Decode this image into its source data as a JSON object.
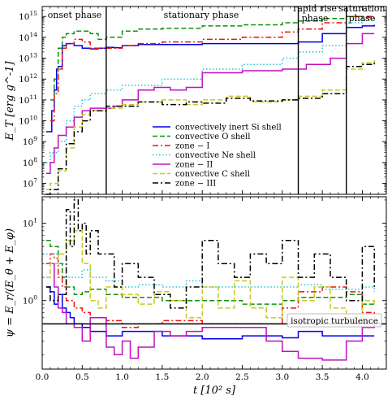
{
  "chart_data": [
    {
      "type": "line",
      "ylabel": "E_T [erg g^-1]",
      "yscale": "log",
      "ylim": [
        3000000,
        3000000000000000
      ],
      "xlim": [
        0,
        4.3
      ],
      "y_ticks": [
        {
          "value": 10000000,
          "mant": "10",
          "exp": "7"
        },
        {
          "value": 100000000,
          "mant": "10",
          "exp": "8"
        },
        {
          "value": 1000000000,
          "mant": "10",
          "exp": "9"
        },
        {
          "value": 10000000000,
          "mant": "10",
          "exp": "10"
        },
        {
          "value": 100000000000,
          "mant": "10",
          "exp": "11"
        },
        {
          "value": 1000000000000,
          "mant": "10",
          "exp": "12"
        },
        {
          "value": 10000000000000,
          "mant": "10",
          "exp": "13"
        },
        {
          "value": 100000000000000,
          "mant": "10",
          "exp": "14"
        },
        {
          "value": 1000000000000000,
          "mant": "10",
          "exp": "15"
        }
      ],
      "phase_lines": [
        0.8,
        3.2,
        3.8
      ],
      "phase_labels": [
        "onset phase",
        "stationary phase",
        "rapid rise",
        "phase",
        "saturation",
        "phase"
      ],
      "legend": {
        "position": "center-right",
        "entries": [
          {
            "label": "convectively inert Si shell",
            "color": "#0000ee",
            "dash": "solid"
          },
          {
            "label": "convective O shell",
            "color": "#109010",
            "dash": "dashed"
          },
          {
            "label": "zone − I",
            "color": "#ee1111",
            "dash": "dashdot"
          },
          {
            "label": "convective Ne shell",
            "color": "#22c4d4",
            "dash": "dotted"
          },
          {
            "label": "zone − II",
            "color": "#c010c0",
            "dash": "solid"
          },
          {
            "label": "convective C shell",
            "color": "#c8c820",
            "dash": "dashed"
          },
          {
            "label": "zone − III",
            "color": "#000000",
            "dash": "dashdot"
          }
        ]
      },
      "series": [
        {
          "name": "convectively inert Si shell",
          "x": [
            0.05,
            0.08,
            0.1,
            0.12,
            0.14,
            0.15,
            0.18,
            0.2,
            0.25,
            0.3,
            0.4,
            0.5,
            0.6,
            0.7,
            0.8,
            0.9,
            1.0,
            1.2,
            1.5,
            2.0,
            2.5,
            3.0,
            3.2,
            3.5,
            3.8,
            4.0,
            4.15
          ],
          "y": [
            3000000000.0,
            3000000000.0,
            3000000000.0,
            30000000000.0,
            30000000000.0,
            300000000000.0,
            3000000000000.0,
            4000000000000.0,
            40000000000000.0,
            50000000000000.0,
            40000000000000.0,
            30000000000000.0,
            28000000000000.0,
            30000000000000.0,
            33000000000000.0,
            32000000000000.0,
            40000000000000.0,
            45000000000000.0,
            45000000000000.0,
            50000000000000.0,
            50000000000000.0,
            50000000000000.0,
            60000000000000.0,
            150000000000000.0,
            300000000000000.0,
            350000000000000.0,
            400000000000000.0
          ]
        },
        {
          "name": "convective O shell",
          "x": [
            0.1,
            0.15,
            0.2,
            0.25,
            0.3,
            0.4,
            0.5,
            0.6,
            0.7,
            0.8,
            1.0,
            1.2,
            1.5,
            2.0,
            2.5,
            3.0,
            3.2,
            3.5,
            3.8,
            4.0,
            4.15
          ],
          "y": [
            100000000000.0,
            1000000000000.0,
            30000000000000.0,
            100000000000000.0,
            150000000000000.0,
            200000000000000.0,
            200000000000000.0,
            150000000000000.0,
            80000000000000.0,
            100000000000000.0,
            200000000000000.0,
            250000000000000.0,
            270000000000000.0,
            350000000000000.0,
            400000000000000.0,
            500000000000000.0,
            600000000000000.0,
            800000000000000.0,
            1000000000000000.0,
            900000000000000.0,
            900000000000000.0
          ]
        },
        {
          "name": "zone − I",
          "x": [
            0.1,
            0.15,
            0.2,
            0.25,
            0.3,
            0.4,
            0.5,
            0.6,
            0.8,
            1.0,
            1.2,
            1.5,
            2.0,
            2.5,
            3.0,
            3.2,
            3.5,
            3.8,
            4.0,
            4.15
          ],
          "y": [
            10000000000.0,
            200000000000.0,
            3000000000000.0,
            30000000000000.0,
            50000000000000.0,
            80000000000000.0,
            60000000000000.0,
            30000000000000.0,
            30000000000000.0,
            40000000000000.0,
            50000000000000.0,
            60000000000000.0,
            80000000000000.0,
            100000000000000.0,
            180000000000000.0,
            250000000000000.0,
            500000000000000.0,
            1000000000000000.0,
            1000000000000000.0,
            1000000000000000.0
          ]
        },
        {
          "name": "convective Ne shell",
          "x": [
            0.05,
            0.1,
            0.2,
            0.3,
            0.4,
            0.5,
            0.6,
            0.8,
            1.0,
            1.5,
            2.0,
            2.5,
            3.0,
            3.2,
            3.5,
            3.8,
            4.0,
            4.15
          ],
          "y": [
            100000000.0,
            300000000.0,
            1000000000.0,
            10000000000.0,
            50000000000.0,
            100000000000.0,
            200000000000.0,
            300000000000.0,
            500000000000.0,
            1000000000000.0,
            3000000000000.0,
            5000000000000.0,
            10000000000000.0,
            20000000000000.0,
            40000000000000.0,
            500000000000000.0,
            700000000000000.0,
            800000000000000.0
          ]
        },
        {
          "name": "zone − II",
          "x": [
            0.05,
            0.1,
            0.15,
            0.2,
            0.3,
            0.4,
            0.5,
            0.6,
            0.7,
            0.8,
            0.9,
            1.0,
            1.2,
            1.4,
            1.6,
            1.8,
            2.0,
            2.5,
            3.0,
            3.3,
            3.6,
            3.8,
            4.0,
            4.15
          ],
          "y": [
            30000000.0,
            100000000.0,
            500000000.0,
            2000000000.0,
            5000000000.0,
            15000000000.0,
            30000000000.0,
            40000000000.0,
            40000000000.0,
            40000000000.0,
            50000000000.0,
            100000000000.0,
            300000000000.0,
            400000000000.0,
            300000000000.0,
            400000000000.0,
            2000000000000.0,
            2500000000000.0,
            3000000000000.0,
            5000000000000.0,
            10000000000000.0,
            50000000000000.0,
            150000000000000.0,
            150000000000000.0
          ]
        },
        {
          "name": "convective C shell",
          "x": [
            0.05,
            0.1,
            0.2,
            0.3,
            0.4,
            0.5,
            0.6,
            0.8,
            1.0,
            1.2,
            1.5,
            1.8,
            2.0,
            2.3,
            2.6,
            3.0,
            3.2,
            3.5,
            3.8,
            4.0,
            4.15
          ],
          "y": [
            5000000.0,
            10000000.0,
            40000000.0,
            500000000.0,
            5000000000.0,
            20000000000.0,
            30000000000.0,
            40000000000.0,
            60000000000.0,
            80000000000.0,
            100000000000.0,
            60000000000.0,
            100000000000.0,
            150000000000.0,
            80000000000.0,
            100000000000.0,
            150000000000.0,
            300000000000.0,
            3000000000000.0,
            6000000000000.0,
            8000000000000.0
          ]
        },
        {
          "name": "zone − III",
          "x": [
            0.05,
            0.1,
            0.2,
            0.3,
            0.4,
            0.5,
            0.6,
            0.8,
            1.0,
            1.2,
            1.5,
            1.8,
            2.0,
            2.3,
            2.6,
            3.0,
            3.2,
            3.5,
            3.8,
            4.0,
            4.15
          ],
          "y": [
            3000000.0,
            5000000.0,
            50000000.0,
            800000000.0,
            3000000000.0,
            10000000000.0,
            30000000000.0,
            50000000000.0,
            50000000000.0,
            80000000000.0,
            60000000000.0,
            80000000000.0,
            70000000000.0,
            120000000000.0,
            90000000000.0,
            100000000000.0,
            120000000000.0,
            200000000000.0,
            4000000000000.0,
            5000000000000.0,
            6000000000000.0
          ]
        }
      ]
    },
    {
      "type": "line",
      "xlabel": "t [10² s]",
      "ylabel": "ψ = E_r/(E_θ + E_φ)",
      "yscale": "log",
      "ylim": [
        0.13,
        22
      ],
      "xlim": [
        0,
        4.3
      ],
      "x_ticks": [
        "0.0",
        "0.5",
        "1.0",
        "1.5",
        "2.0",
        "2.5",
        "3.0",
        "3.5",
        "4.0"
      ],
      "y_ticks": [
        {
          "value": 1,
          "mant": "10",
          "exp": "0"
        },
        {
          "value": 10,
          "mant": "10",
          "exp": "1"
        }
      ],
      "reference_line": {
        "y": 0.5,
        "label": "isotropic turbulence"
      },
      "series": [
        {
          "name": "convectively inert Si shell",
          "x": [
            0.05,
            0.1,
            0.15,
            0.2,
            0.25,
            0.3,
            0.35,
            0.4,
            0.5,
            0.6,
            0.8,
            1.0,
            1.2,
            1.5,
            2.0,
            2.5,
            3.0,
            3.2,
            3.5,
            3.8,
            4.0,
            4.15
          ],
          "y": [
            1.5,
            1.3,
            0.9,
            1.2,
            0.8,
            0.7,
            0.6,
            0.5,
            0.45,
            0.4,
            0.35,
            0.4,
            0.4,
            0.35,
            0.32,
            0.35,
            0.33,
            0.4,
            0.35,
            0.35,
            0.35,
            0.35
          ]
        },
        {
          "name": "convective O shell",
          "x": [
            0.05,
            0.1,
            0.15,
            0.2,
            0.25,
            0.3,
            0.4,
            0.5,
            0.6,
            0.8,
            1.0,
            1.5,
            2.0,
            2.5,
            3.0,
            3.2,
            3.5,
            3.8,
            4.0,
            4.15
          ],
          "y": [
            6,
            5,
            5,
            3,
            2,
            1.5,
            1.2,
            1.3,
            1.4,
            1.2,
            1.1,
            1.0,
            1.0,
            0.9,
            1.0,
            1.1,
            1.1,
            1.2,
            0.9,
            0.9
          ]
        },
        {
          "name": "zone − I",
          "x": [
            0.05,
            0.1,
            0.15,
            0.2,
            0.25,
            0.3,
            0.4,
            0.5,
            0.6,
            0.8,
            1.0,
            1.2,
            1.5,
            2.0,
            2.5,
            3.0,
            3.2,
            3.5,
            3.8,
            4.0,
            4.15
          ],
          "y": [
            3,
            4,
            3.5,
            2,
            1.5,
            1,
            0.8,
            0.7,
            0.6,
            0.55,
            0.45,
            0.5,
            0.55,
            0.5,
            0.5,
            0.8,
            1.3,
            1.5,
            1.3,
            0.7,
            0.6
          ]
        },
        {
          "name": "convective Ne shell",
          "x": [
            0.05,
            0.1,
            0.2,
            0.3,
            0.4,
            0.5,
            0.6,
            0.8,
            1.0,
            1.2,
            1.5,
            1.8,
            2.0,
            2.5,
            3.0,
            3.2,
            3.5,
            3.8,
            4.0,
            4.15
          ],
          "y": [
            4,
            4,
            3,
            2,
            2,
            2.5,
            2,
            1.8,
            1.5,
            1.6,
            1.5,
            1.8,
            1.5,
            1.5,
            1.5,
            1.6,
            1.4,
            1.4,
            1.5,
            1.3
          ]
        },
        {
          "name": "zone − II",
          "x": [
            0.05,
            0.1,
            0.15,
            0.2,
            0.25,
            0.3,
            0.4,
            0.5,
            0.6,
            0.7,
            0.8,
            0.9,
            1.0,
            1.1,
            1.2,
            1.4,
            1.6,
            1.8,
            2.0,
            2.5,
            2.8,
            3.0,
            3.2,
            3.5,
            3.8,
            4.0,
            4.15
          ],
          "y": [
            3,
            3,
            1.5,
            0.8,
            0.7,
            0.5,
            0.45,
            0.3,
            0.6,
            0.6,
            0.25,
            0.2,
            0.3,
            0.18,
            0.25,
            0.4,
            0.35,
            0.4,
            0.45,
            0.45,
            0.3,
            0.22,
            0.18,
            0.17,
            0.3,
            0.45,
            0.5
          ]
        },
        {
          "name": "convective C shell",
          "x": [
            0.05,
            0.1,
            0.2,
            0.3,
            0.4,
            0.5,
            0.6,
            0.7,
            0.8,
            1.0,
            1.2,
            1.4,
            1.6,
            1.8,
            2.0,
            2.2,
            2.4,
            2.6,
            2.8,
            3.0,
            3.2,
            3.4,
            3.6,
            3.8,
            4.0,
            4.15
          ],
          "y": [
            2,
            3,
            4,
            6,
            8,
            3,
            1,
            0.8,
            1.5,
            1.2,
            0.9,
            1.3,
            1,
            0.6,
            1.5,
            0.8,
            1.8,
            0.8,
            0.6,
            2,
            1,
            1.5,
            0.8,
            0.6,
            1,
            0.9
          ]
        },
        {
          "name": "zone − III",
          "x": [
            0.05,
            0.1,
            0.2,
            0.3,
            0.35,
            0.4,
            0.45,
            0.5,
            0.55,
            0.6,
            0.7,
            0.8,
            0.9,
            1.0,
            1.2,
            1.4,
            1.6,
            1.8,
            2.0,
            2.2,
            2.4,
            2.6,
            2.8,
            3.0,
            3.2,
            3.4,
            3.6,
            3.8,
            4.0,
            4.15
          ],
          "y": [
            1.5,
            1,
            1.2,
            15,
            5,
            20,
            8,
            10,
            4,
            8,
            4,
            4,
            1.5,
            3,
            2,
            1.2,
            0.8,
            1.5,
            6,
            3,
            2,
            4,
            3,
            6,
            2,
            4,
            2,
            1,
            5,
            1.5
          ]
        }
      ]
    }
  ]
}
